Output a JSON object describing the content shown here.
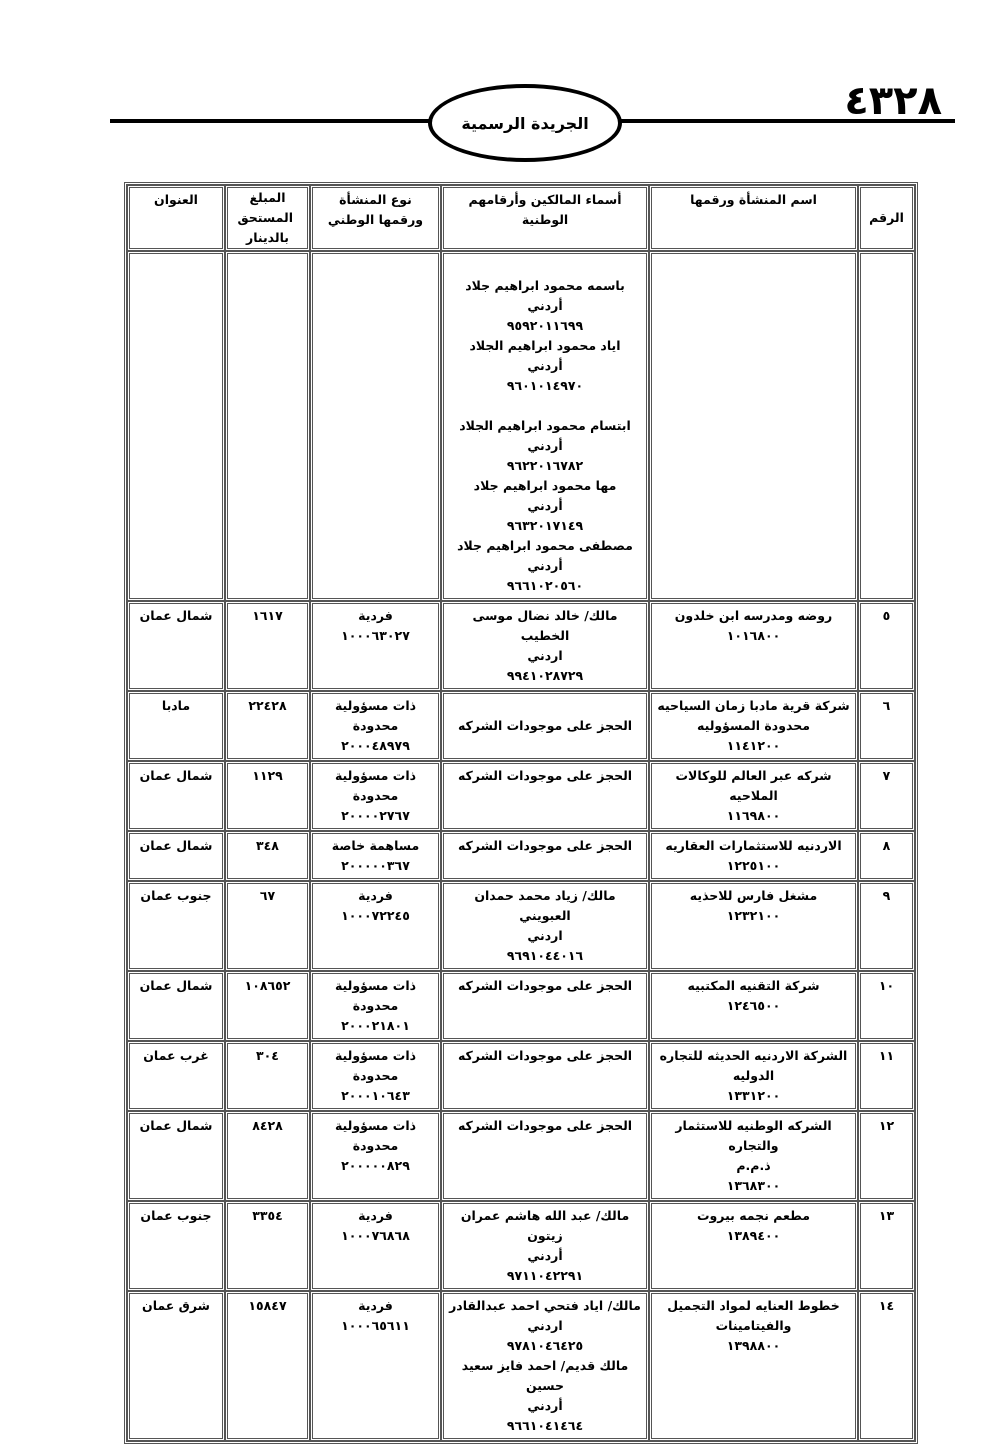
{
  "header": {
    "page_number": "٤٣٢٨",
    "gazette_title": "الجريدة الرسمية"
  },
  "table": {
    "columns": [
      "الرقم",
      "اسم المنشأة ورقمها",
      "أسماء المالكين وأرقامهم الوطنية",
      "نوع المنشأة ورقمها الوطني",
      "المبلغ المستحق بالدينار",
      "العنوان"
    ],
    "rows": [
      {
        "num": "",
        "name": "",
        "owners": "باسمه محمود ابراهيم جلاد\nأردني\n٩٥٩٢٠١١٦٩٩\nاياد محمود ابراهيم الجلاد\nأردني\n٩٦٠١٠١٤٩٧٠\n\nابتسام محمود ابراهيم الجلاد\nأردني\n٩٦٢٢٠١٦٧٨٢\nمها محمود ابراهيم جلاد\nأردني\n٩٦٣٢٠١٧١٤٩\nمصطفى محمود ابراهيم جلاد\nأردني\n٩٦٦١٠٢٠٥٦٠",
        "type": "",
        "amount": "",
        "address": "",
        "owners_mid": false
      },
      {
        "num": "٥",
        "name": "روضه ومدرسه ابن خلدون\n١٠١٦٨٠٠",
        "owners": "مالك/ خالد نضال موسى الخطيب\nاردني\n٩٩٤١٠٢٨٧٢٩",
        "type": "فردية\n١٠٠٠٦٣٠٢٧",
        "amount": "١٦١٧",
        "address": "شمال عمان",
        "owners_mid": true
      },
      {
        "num": "٦",
        "name": "شركة قرية مادبا زمان السياحيه\nمحدودة المسؤوليه\n١١٤١٢٠٠",
        "owners": "الحجز على موجودات الشركه",
        "type": "ذات مسؤولية\nمحدودة\n٢٠٠٠٤٨٩٧٩",
        "amount": "٢٢٤٢٨",
        "address": "مادبا",
        "owners_mid": true
      },
      {
        "num": "٧",
        "name": "شركه عبر العالم للوكالات الملاحيه\n١١٦٩٨٠٠",
        "owners": "الحجز على موجودات الشركه",
        "type": "ذات مسؤولية\nمحدودة\n٢٠٠٠٠٢٧٦٧",
        "amount": "١١٢٩",
        "address": "شمال عمان",
        "owners_mid": false
      },
      {
        "num": "٨",
        "name": "الاردنيه للاستثمارات العقاريه\n١٢٢٥١٠٠",
        "owners": "الحجز على موجودات الشركه",
        "type": "مساهمة خاصة\n٢٠٠٠٠٠٣٦٧",
        "amount": "٣٤٨",
        "address": "شمال عمان",
        "owners_mid": false
      },
      {
        "num": "٩",
        "name": "مشغل فارس للاحذيه\n١٢٣٢١٠٠",
        "owners": "مالك/ زياد محمد حمدان العبويني\nاردني\n٩٦٩١٠٤٤٠١٦",
        "type": "فردية\n١٠٠٠٧٢٢٤٥",
        "amount": "٦٧",
        "address": "جنوب عمان",
        "owners_mid": true
      },
      {
        "num": "١٠",
        "name": "شركة التقنيه المكتبيه\n١٢٤٦٥٠٠",
        "owners": "الحجز على موجودات الشركه",
        "type": "ذات مسؤولية\nمحدودة\n٢٠٠٠٢١٨٠١",
        "amount": "١٠٨٦٥٢",
        "address": "شمال عمان",
        "owners_mid": false
      },
      {
        "num": "١١",
        "name": "الشركة الاردنيه الحديثه للتجاره\nالدوليه\n١٣٣١٢٠٠",
        "owners": "الحجز على موجودات الشركه",
        "type": "ذات مسؤولية\nمحدودة\n٢٠٠٠١٠٦٤٣",
        "amount": "٣٠٤",
        "address": "غرب عمان",
        "owners_mid": false
      },
      {
        "num": "١٢",
        "name": "الشركه الوطنيه للاستثمار والتجاره\nذ.م.م\n١٣٦٨٣٠٠",
        "owners": "الحجز على موجودات الشركه",
        "type": "ذات مسؤولية\nمحدودة\n٢٠٠٠٠٠٨٢٩",
        "amount": "٨٤٢٨",
        "address": "شمال عمان",
        "owners_mid": false
      },
      {
        "num": "١٣",
        "name": "مطعم نجمه بيروت\n١٣٨٩٤٠٠",
        "owners": "مالك/ عبد الله هاشم عمران زيتون\nأردني\n٩٧١١٠٤٢٢٩١",
        "type": "فردية\n١٠٠٠٧٦٨٦٨",
        "amount": "٣٣٥٤",
        "address": "جنوب عمان",
        "owners_mid": true
      },
      {
        "num": "١٤",
        "name": "خطوط العنايه لمواد التجميل\nوالفيتامينات\n١٣٩٨٨٠٠",
        "owners": "مالك/ اياد فتحي احمد عبدالقادر\nاردني\n٩٧٨١٠٤٦٤٢٥\nمالك قديم/ احمد فايز سعيد حسين\nأردني\n٩٦٦١٠٤١٤٦٤",
        "type": "فردية\n١٠٠٠٦٥٦١١",
        "amount": "١٥٨٤٧",
        "address": "شرق عمان",
        "owners_mid": true
      }
    ]
  }
}
